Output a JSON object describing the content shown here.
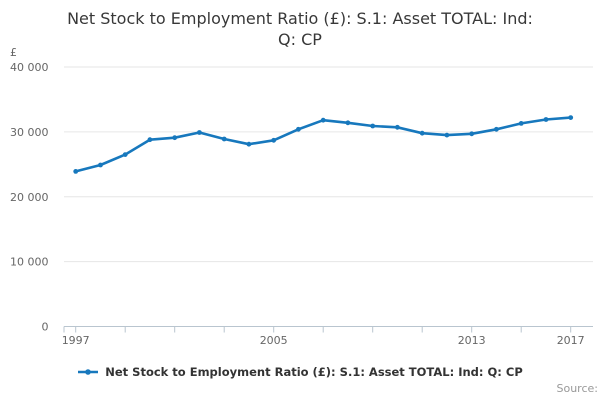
{
  "page": {
    "title_lines": [
      "Net Stock to Employment Ratio (£): S.1: Asset TOTAL: Ind:",
      "Q: CP"
    ],
    "source_label": "Source:"
  },
  "legend": {
    "label": "Net Stock to Employment Ratio (£): S.1: Asset TOTAL: Ind: Q: CP"
  },
  "colors": {
    "series": "#1778bd",
    "grid": "#e6e6e6",
    "axis": "#b9c5cf",
    "tick_text": "#666666",
    "title_text": "#383838",
    "legend_text": "#333333",
    "source_text": "#999999"
  },
  "chart_data": {
    "type": "line",
    "title": "Net Stock to Employment Ratio (£): S.1: Asset TOTAL: Ind: Q: CP",
    "y_axis_title": "£",
    "xlabel": "",
    "ylabel": "£",
    "x": [
      1997,
      1998,
      1999,
      2000,
      2001,
      2002,
      2003,
      2004,
      2005,
      2006,
      2007,
      2008,
      2009,
      2010,
      2011,
      2012,
      2013,
      2014,
      2015,
      2016,
      2017
    ],
    "series": [
      {
        "name": "Net Stock to Employment Ratio (£): S.1: Asset TOTAL: Ind: Q: CP",
        "color": "#1778bd",
        "values": [
          23900,
          24900,
          26500,
          28800,
          29100,
          29900,
          28900,
          28100,
          28700,
          30400,
          31800,
          31400,
          30900,
          30700,
          29800,
          29500,
          29700,
          30400,
          31300,
          31900,
          32200
        ]
      }
    ],
    "ylim": [
      0,
      40000
    ],
    "y_ticks": [
      {
        "value": 0,
        "label": "0"
      },
      {
        "value": 10000,
        "label": "10 000"
      },
      {
        "value": 20000,
        "label": "20 000"
      },
      {
        "value": 30000,
        "label": "30 000"
      },
      {
        "value": 40000,
        "label": "40 000"
      }
    ],
    "x_tick_interval": 2,
    "x_labeled_ticks": [
      1997,
      2005,
      2013,
      2017
    ],
    "grid": "horizontal",
    "legend_position": "bottom"
  }
}
